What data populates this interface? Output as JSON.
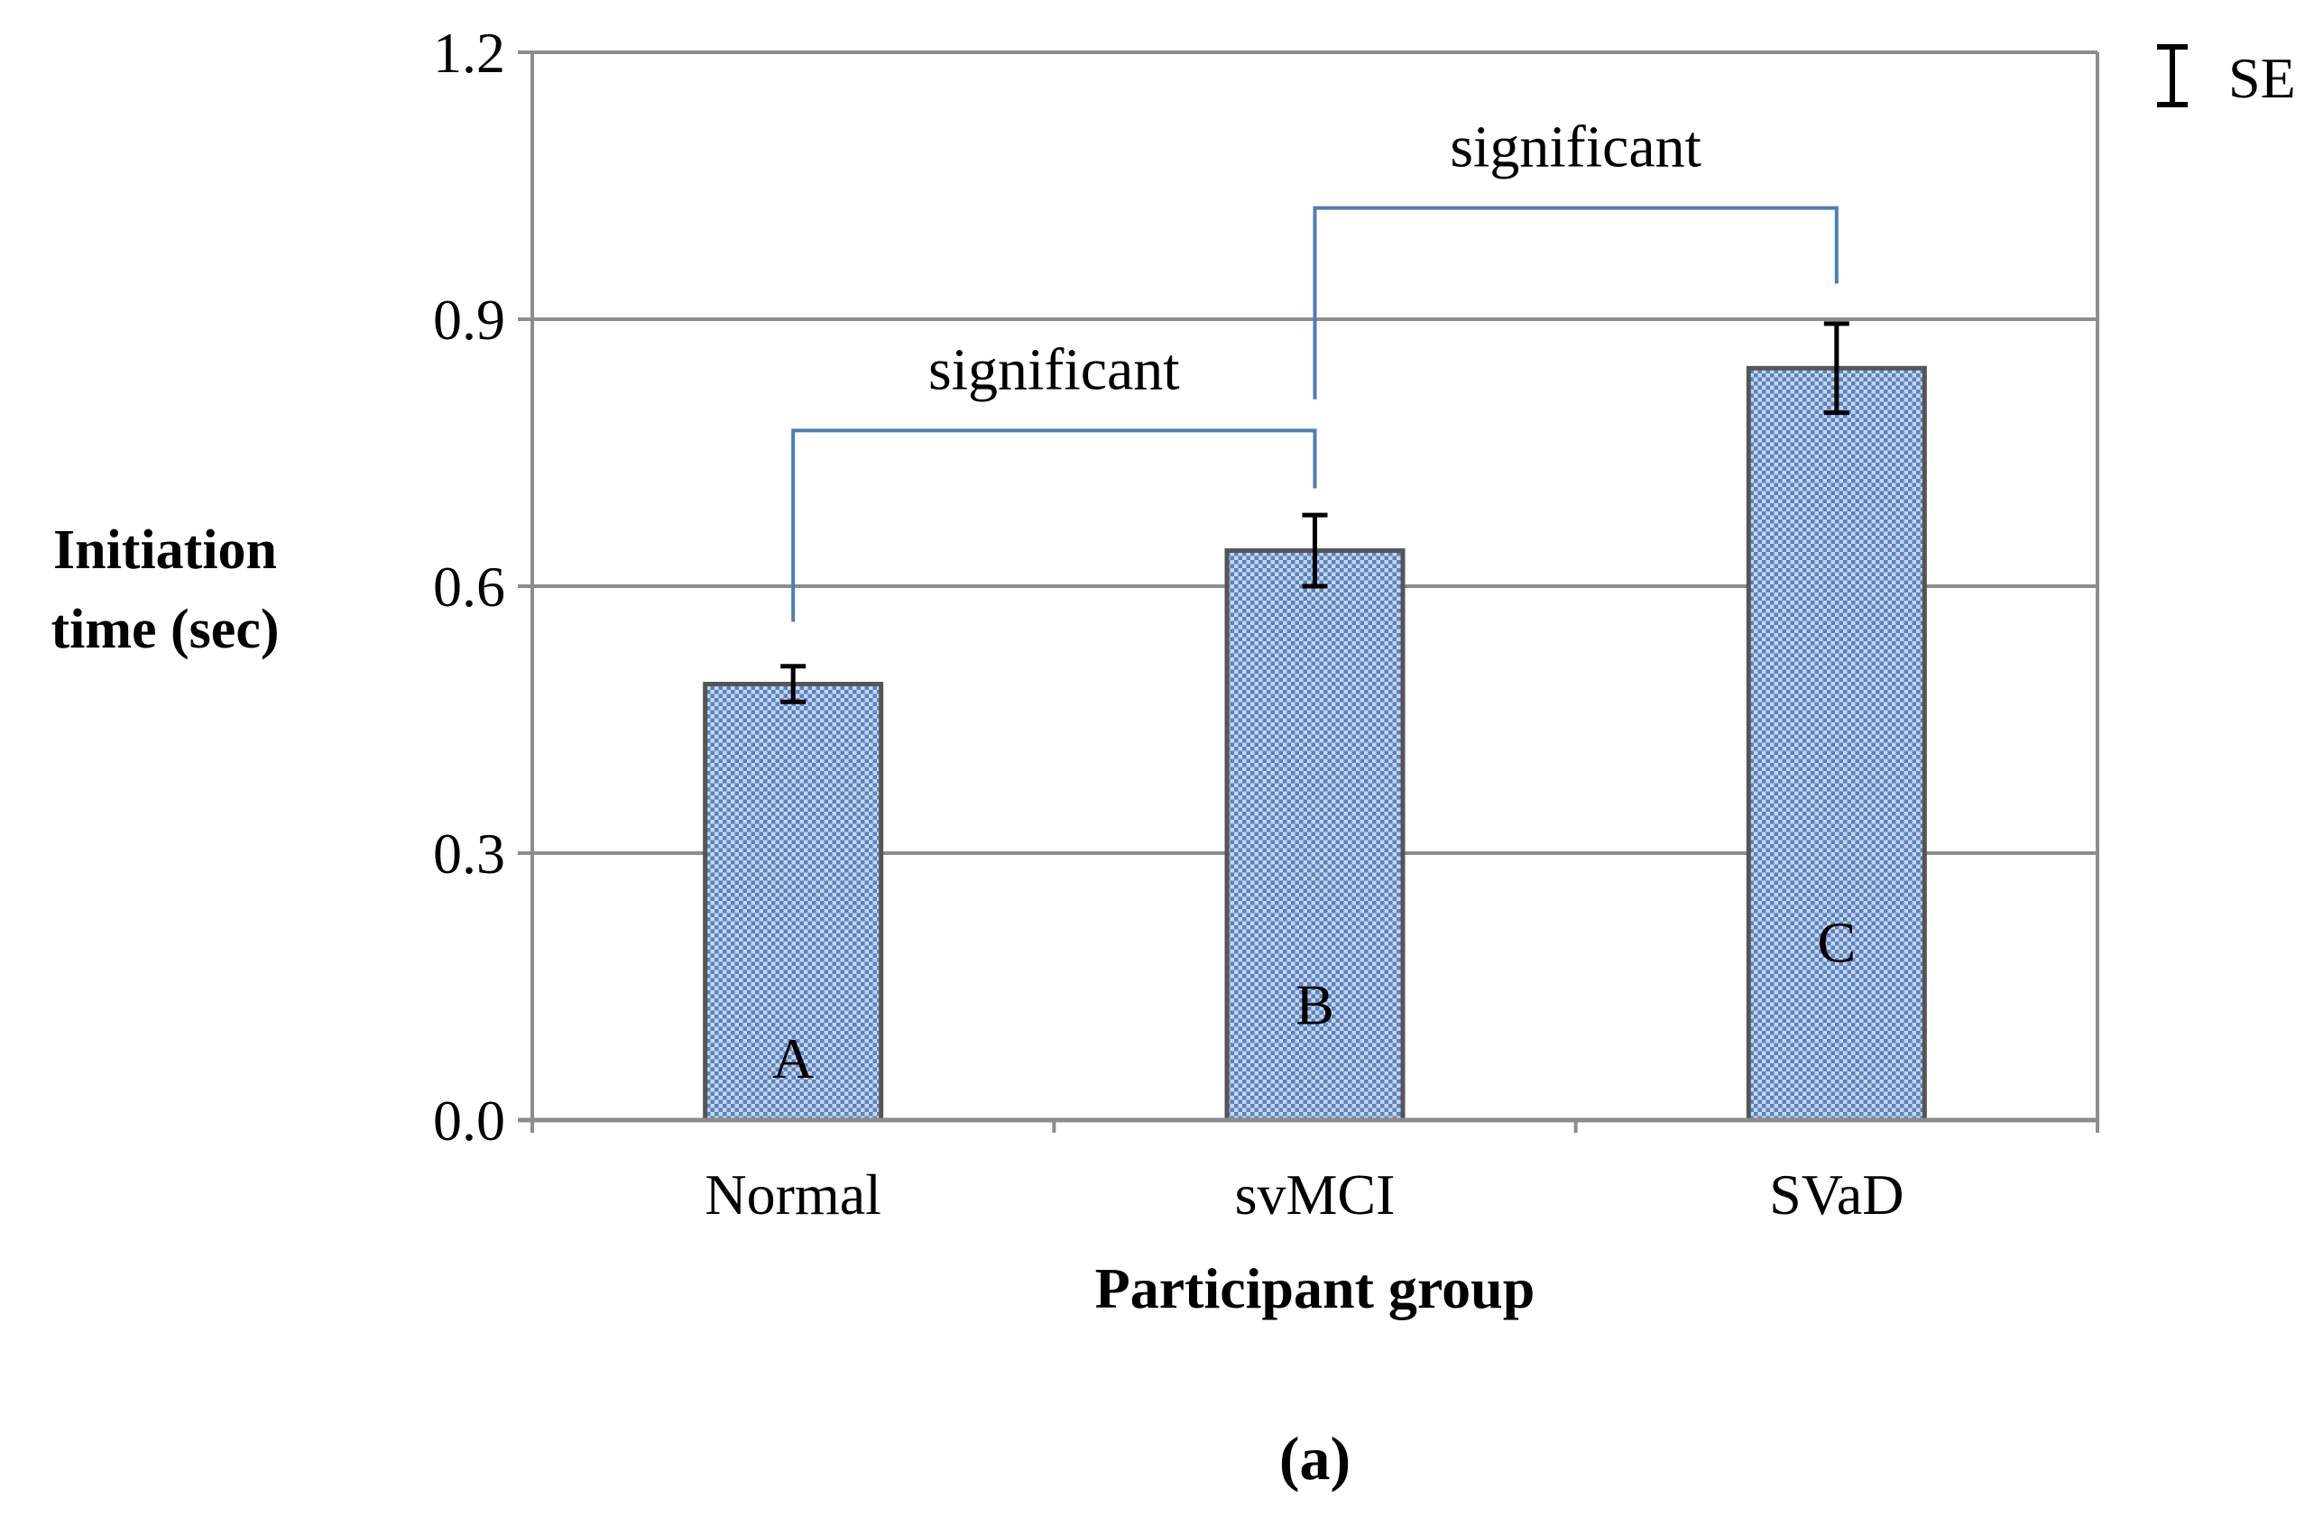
{
  "chart_data": {
    "type": "bar",
    "categories": [
      "Normal",
      "svMCI",
      "SVaD"
    ],
    "values": [
      0.49,
      0.64,
      0.845
    ],
    "errors": [
      0.02,
      0.04,
      0.05
    ],
    "bar_labels": [
      "A",
      "B",
      "C"
    ],
    "bar_label_values": [
      0.07,
      0.13,
      0.2
    ],
    "title": "",
    "xlabel": "Participant group",
    "ylabel_lines": [
      "Initiation",
      "time (sec)"
    ],
    "ylim": [
      0,
      1.2
    ],
    "yticks": [
      0.0,
      0.3,
      0.6,
      0.9,
      1.2
    ],
    "ytick_labels": [
      "0.0",
      "0.3",
      "0.6",
      "0.9",
      "1.2"
    ],
    "grid": true,
    "legend": {
      "label": "SE",
      "position": "top-right"
    },
    "significance": [
      {
        "from": 0,
        "to": 1,
        "label": "significant",
        "left_end": 0.56,
        "right_end": 0.71,
        "top": 0.775
      },
      {
        "from": 1,
        "to": 2,
        "label": "significant",
        "left_end": 0.81,
        "right_end": 0.94,
        "top": 1.025
      }
    ],
    "panel_label": "(a)"
  },
  "colors": {
    "bar_fill": "#9db8de",
    "bar_pattern_dot": "#5b82bd",
    "bar_edge": "#555555",
    "grid": "#8c8c8c",
    "axis": "#8c8c8c",
    "bracket": "#4a7ebb",
    "text": "#000000"
  }
}
